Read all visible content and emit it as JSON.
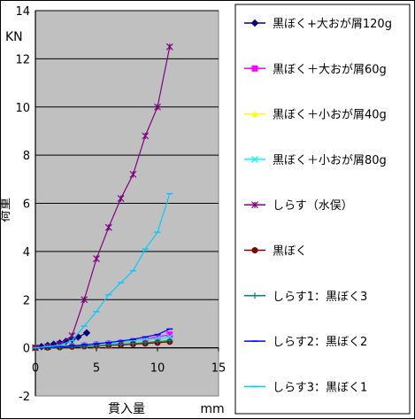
{
  "chart_data": {
    "type": "line",
    "title": "",
    "xlabel": "貫入量",
    "ylabel": "荷重",
    "x_unit": "mm",
    "y_unit": "KN",
    "xlim": [
      0,
      15
    ],
    "ylim": [
      -2,
      14
    ],
    "xticks": [
      0,
      5,
      10,
      15
    ],
    "yticks": [
      -2,
      0,
      2,
      4,
      6,
      8,
      10,
      12,
      14
    ],
    "grid": "horizontal",
    "plot_background": "#c0c0c0",
    "legend_position": "right",
    "series": [
      {
        "name": "黒ぼく+大おが屑120g",
        "color": "#000080",
        "marker": "diamond",
        "x": [
          0,
          0.5,
          1,
          1.5,
          2,
          2.5,
          3,
          3.5,
          4.2
        ],
        "y": [
          0,
          0.05,
          0.1,
          0.15,
          0.2,
          0.27,
          0.35,
          0.45,
          0.62
        ]
      },
      {
        "name": "黒ぼく＋大おが屑60g",
        "color": "#ff00ff",
        "marker": "square",
        "x": [
          0,
          1,
          2,
          3,
          4,
          5,
          6,
          7,
          8,
          9,
          10,
          11
        ],
        "y": [
          0,
          0.02,
          0.04,
          0.07,
          0.1,
          0.14,
          0.18,
          0.22,
          0.28,
          0.35,
          0.45,
          0.55
        ]
      },
      {
        "name": "黒ぼく＋小おが屑40g",
        "color": "#ffff00",
        "marker": "triangle",
        "x": [
          0,
          1,
          2,
          3,
          4,
          5,
          6,
          7,
          8,
          9,
          10,
          11
        ],
        "y": [
          0,
          0.01,
          0.03,
          0.05,
          0.08,
          0.1,
          0.13,
          0.16,
          0.2,
          0.24,
          0.28,
          0.32
        ]
      },
      {
        "name": "黒ぼく＋小おが屑80g",
        "color": "#00ffff",
        "marker": "x",
        "x": [
          0,
          1,
          2,
          3,
          4,
          5,
          6,
          7,
          8,
          9,
          10,
          11
        ],
        "y": [
          0,
          0.02,
          0.05,
          0.08,
          0.12,
          0.15,
          0.19,
          0.23,
          0.28,
          0.33,
          0.38,
          0.45
        ]
      },
      {
        "name": "しらす（水俣）",
        "color": "#800080",
        "marker": "star",
        "x": [
          0,
          1,
          2,
          3,
          4,
          5,
          6,
          7,
          8,
          9,
          10,
          11
        ],
        "y": [
          0,
          0.05,
          0.15,
          0.5,
          2.0,
          3.7,
          5.0,
          6.2,
          7.2,
          8.8,
          10.0,
          12.5
        ]
      },
      {
        "name": "黒ぼく",
        "color": "#800000",
        "marker": "circle",
        "x": [
          0,
          1,
          2,
          3,
          4,
          5,
          6,
          7,
          8,
          9,
          10,
          11
        ],
        "y": [
          0,
          0.01,
          0.02,
          0.04,
          0.06,
          0.08,
          0.1,
          0.12,
          0.15,
          0.18,
          0.21,
          0.25
        ]
      },
      {
        "name": "しらす1：黒ぼく3",
        "color": "#008080",
        "marker": "plus",
        "x": [
          0,
          1,
          2,
          3,
          4,
          5,
          6,
          7,
          8,
          9,
          10,
          11
        ],
        "y": [
          0,
          0.01,
          0.03,
          0.05,
          0.07,
          0.09,
          0.12,
          0.15,
          0.18,
          0.22,
          0.26,
          0.3
        ]
      },
      {
        "name": "しらす2：黒ぼく2",
        "color": "#0000ff",
        "marker": "dash",
        "x": [
          0,
          1,
          2,
          3,
          4,
          5,
          6,
          7,
          8,
          9,
          10,
          11
        ],
        "y": [
          0,
          0.02,
          0.05,
          0.08,
          0.12,
          0.17,
          0.22,
          0.28,
          0.35,
          0.45,
          0.55,
          0.78
        ]
      },
      {
        "name": "しらす3：黒ぼく1",
        "color": "#00ccff",
        "marker": "dash",
        "x": [
          0,
          1,
          2,
          3,
          4,
          5,
          6,
          7,
          8,
          9,
          10,
          11
        ],
        "y": [
          0,
          0.05,
          0.1,
          0.3,
          0.9,
          1.5,
          2.2,
          2.7,
          3.2,
          4.1,
          4.8,
          6.4
        ]
      }
    ]
  }
}
